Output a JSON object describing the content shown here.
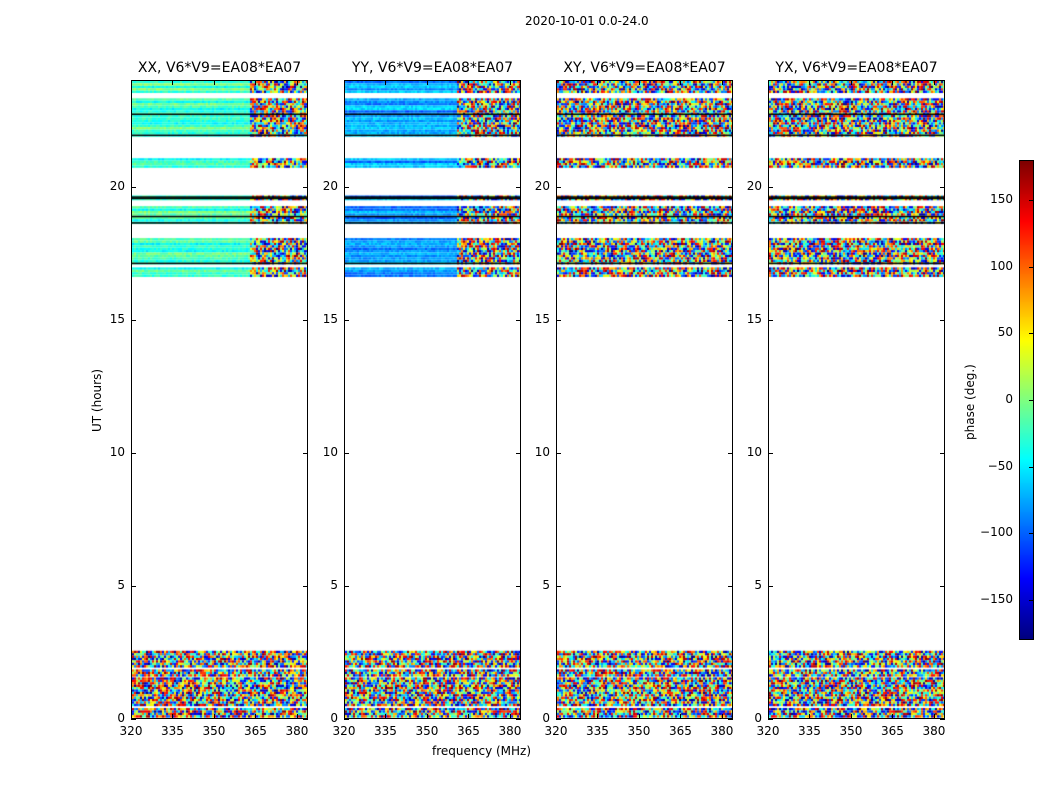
{
  "chart_data": {
    "type": "heatmap",
    "title": "2020-10-01 0.0-24.0",
    "xlabel": "frequency (MHz)",
    "ylabel": "UT (hours)",
    "xlim": [
      320,
      384
    ],
    "ylim": [
      0,
      24
    ],
    "xticks": [
      320,
      335,
      350,
      365,
      380
    ],
    "yticks": [
      0,
      5,
      10,
      15,
      20
    ],
    "colorbar": {
      "label": "phase (deg.)",
      "range": [
        -180,
        180
      ],
      "ticks": [
        150,
        100,
        50,
        0,
        -50,
        -100,
        -150
      ],
      "colormap": "jet"
    },
    "data_bands_hours": [
      [
        0.1,
        0.45
      ],
      [
        0.6,
        1.6
      ],
      [
        1.7,
        1.9
      ],
      [
        2.0,
        2.6
      ],
      [
        16.7,
        17.0
      ],
      [
        17.15,
        18.1
      ],
      [
        18.7,
        18.9
      ],
      [
        18.95,
        19.3
      ],
      [
        19.55,
        19.7
      ],
      [
        20.75,
        21.1
      ],
      [
        21.95,
        23.35
      ],
      [
        23.6,
        24.0
      ]
    ],
    "flag_lines_hours": [
      17.14,
      18.66,
      18.9,
      19.58,
      19.63,
      21.95,
      22.74
    ],
    "panels": [
      {
        "title": "XX, V6*V9=EA08*EA07",
        "mean_phase_low_freq": -20,
        "coherent_below_freq": 362
      },
      {
        "title": "YY, V6*V9=EA08*EA07",
        "mean_phase_low_freq": -80,
        "coherent_below_freq": 360
      },
      {
        "title": "XY, V6*V9=EA08*EA07",
        "mean_phase_low_freq": null,
        "coherent_below_freq": null
      },
      {
        "title": "YX, V6*V9=EA08*EA07",
        "mean_phase_low_freq": null,
        "coherent_below_freq": null
      }
    ]
  }
}
